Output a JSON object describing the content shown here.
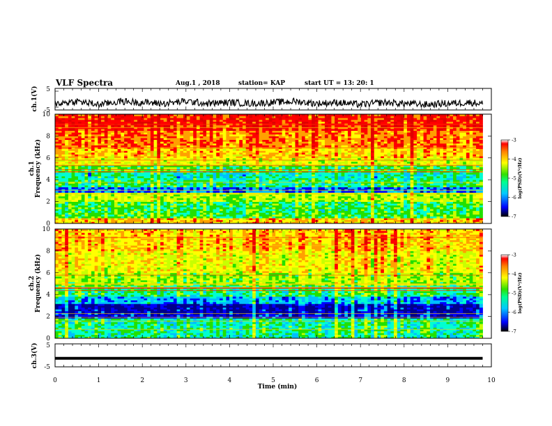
{
  "header": {
    "title": "VLF Spectra",
    "date": "Aug.1  , 2018",
    "station": "station= KAP",
    "start": "start  UT  =   13: 20: 1"
  },
  "chart_data": [
    {
      "id": "ch1-waveform",
      "type": "line",
      "ylabel": "ch.1(V)",
      "ylim": [
        -5,
        5
      ],
      "yticks": [
        "5",
        "-5"
      ],
      "xlim": [
        0,
        10
      ],
      "data_end": 9.8,
      "description_values": {
        "x": [
          0,
          0.5,
          1,
          1.5,
          2,
          2.5,
          3,
          3.5,
          4,
          4.5,
          5,
          5.5,
          6,
          6.5,
          7,
          7.5,
          8,
          8.5,
          9,
          9.5,
          9.8
        ],
        "y": [
          -2,
          -1,
          -2.5,
          -1,
          -1.5,
          -2,
          -1,
          -2,
          -1.5,
          -2,
          -1.5,
          -1,
          -2,
          -1.5,
          -2.5,
          -1.5,
          -2,
          -2.5,
          -2,
          -1.5,
          -2
        ]
      },
      "color": "#000000"
    },
    {
      "id": "ch1-spectrogram",
      "type": "heatmap",
      "ylabel": "ch.1\nFrequency (kHz)",
      "ylim": [
        0,
        10
      ],
      "yticks": [
        "0",
        "2",
        "4",
        "6",
        "8",
        "10"
      ],
      "xlim": [
        0,
        10
      ],
      "data_end": 9.8,
      "z_label": "log(PSD)(V²/Hz)",
      "z_range": [
        -7,
        -3
      ],
      "colorbar_ticks": [
        "-3",
        "-4",
        "-5",
        "-6",
        "-7"
      ],
      "band_log_psd": [
        {
          "f": [
            0,
            0.5
          ],
          "v": -4.2
        },
        {
          "f": [
            0.5,
            1.0
          ],
          "v": -5.2
        },
        {
          "f": [
            1.0,
            2.0
          ],
          "v": -5.3
        },
        {
          "f": [
            2.0,
            2.8
          ],
          "v": -4.8
        },
        {
          "f": [
            2.8,
            3.3
          ],
          "v": -6.2
        },
        {
          "f": [
            3.3,
            4.0
          ],
          "v": -5.4
        },
        {
          "f": [
            4.0,
            4.6
          ],
          "v": -5.6
        },
        {
          "f": [
            4.6,
            5.3
          ],
          "v": -5.2
        },
        {
          "f": [
            5.3,
            6.0
          ],
          "v": -4.6
        },
        {
          "f": [
            6.0,
            7.0
          ],
          "v": -4.2
        },
        {
          "f": [
            7.0,
            8.5
          ],
          "v": -3.9
        },
        {
          "f": [
            8.5,
            10.0
          ],
          "v": -3.6
        }
      ]
    },
    {
      "id": "ch2-spectrogram",
      "type": "heatmap",
      "ylabel": "ch.2\nFrequency (kHz)",
      "ylim": [
        0,
        10
      ],
      "yticks": [
        "0",
        "2",
        "4",
        "6",
        "8",
        "10"
      ],
      "xlim": [
        0,
        10
      ],
      "data_end": 9.8,
      "z_label": "log(PSD)(V²/Hz)",
      "z_range": [
        -7,
        -3
      ],
      "colorbar_ticks": [
        "-3",
        "-4",
        "-5",
        "-6",
        "-7"
      ],
      "band_log_psd": [
        {
          "f": [
            0,
            0.6
          ],
          "v": -5.5
        },
        {
          "f": [
            0.6,
            1.8
          ],
          "v": -5.5
        },
        {
          "f": [
            1.8,
            2.4
          ],
          "v": -6.5
        },
        {
          "f": [
            2.4,
            3.1
          ],
          "v": -6.7
        },
        {
          "f": [
            3.1,
            3.8
          ],
          "v": -6.0
        },
        {
          "f": [
            3.8,
            4.8
          ],
          "v": -5.4
        },
        {
          "f": [
            4.8,
            6.0
          ],
          "v": -4.9
        },
        {
          "f": [
            6.0,
            8.0
          ],
          "v": -4.5
        },
        {
          "f": [
            8.0,
            10.0
          ],
          "v": -4.2
        }
      ]
    },
    {
      "id": "ch3-waveform",
      "type": "line",
      "ylabel": "ch.3(V)",
      "ylim": [
        -5,
        5
      ],
      "yticks": [
        "5",
        "-5"
      ],
      "xlim": [
        0,
        10
      ],
      "data_end": 9.8,
      "x": [
        0,
        9.8
      ],
      "y": [
        -1.3,
        -1.3
      ],
      "color": "#000000"
    }
  ],
  "xaxis": {
    "label": "Time  (min)",
    "ticks": [
      "0",
      "1",
      "2",
      "3",
      "4",
      "5",
      "6",
      "7",
      "8",
      "9",
      "10"
    ]
  },
  "colormap": [
    "#00008b",
    "#0000ff",
    "#00bfff",
    "#00ffd0",
    "#22e000",
    "#c8ff00",
    "#ffff00",
    "#ffa000",
    "#ff0000",
    "#e00000"
  ]
}
